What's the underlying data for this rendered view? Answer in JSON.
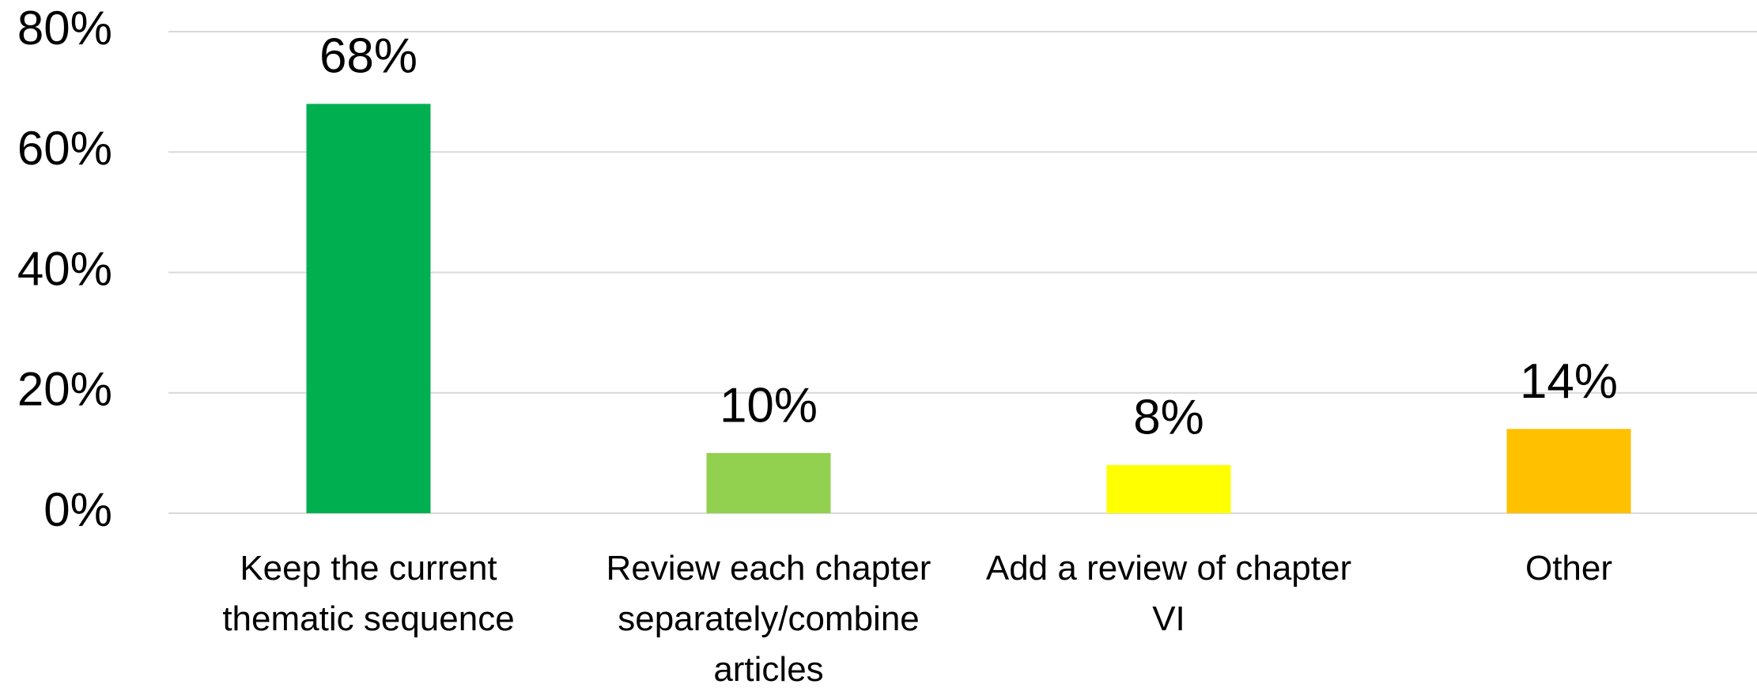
{
  "chart_data": {
    "type": "bar",
    "categories": [
      "Keep the current thematic sequence",
      "Review each chapter separately/combine articles",
      "Add a review of chapter VI",
      "Other"
    ],
    "values": [
      68,
      10,
      8,
      14
    ],
    "value_labels": [
      "68%",
      "10%",
      "8%",
      "14%"
    ],
    "colors": [
      "#00b050",
      "#92d050",
      "#ffff00",
      "#ffc000"
    ],
    "ylim": [
      0,
      80
    ],
    "yticks": [
      {
        "value": 0,
        "label": "0%"
      },
      {
        "value": 20,
        "label": "20%"
      },
      {
        "value": 40,
        "label": "40%"
      },
      {
        "value": 60,
        "label": "60%"
      },
      {
        "value": 80,
        "label": "80%"
      }
    ],
    "grid": true
  }
}
